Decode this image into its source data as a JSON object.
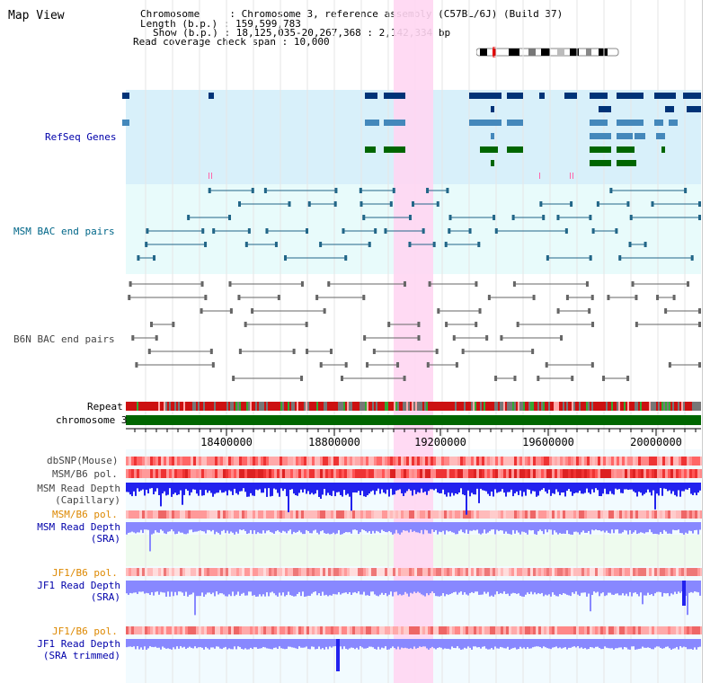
{
  "title": "Map View",
  "header": {
    "rows": [
      {
        "key": "Chromosome",
        "value": "Chromosome 3, reference assembly (C57BL/6J) (Build 37)"
      },
      {
        "key": "Length (b.p.)",
        "value": "159,599,783"
      },
      {
        "key": "Show (b.p.)",
        "value": "18,125,035-20,267,368 : 2,142,334 bp"
      },
      {
        "key": "Read coverage check span",
        "value": "10,000"
      }
    ]
  },
  "tracks": {
    "refseq": {
      "label": "RefSeq Genes",
      "color": "#0000aa"
    },
    "msm_bac": {
      "label": "MSM BAC end pairs",
      "color": "#006688"
    },
    "b6n_bac": {
      "label": "B6N BAC end pairs",
      "color": "#444444"
    },
    "repeat": {
      "label": "Repeat"
    },
    "chromosome": {
      "label": "chromosome 3"
    },
    "dbsnp": {
      "label": "dbSNP(Mouse)"
    },
    "msm_pol1": {
      "label": "MSM/B6 pol."
    },
    "msm_depth_cap": {
      "line1": "MSM Read Depth",
      "line2": "(Capillary)"
    },
    "msm_pol2": {
      "label": "MSM/B6 pol."
    },
    "msm_depth_sra": {
      "line1": "MSM Read Depth",
      "line2": "(SRA)"
    },
    "jf1_pol1": {
      "label": "JF1/B6 pol."
    },
    "jf1_depth_sra": {
      "line1": "JF1 Read Depth",
      "line2": "(SRA)"
    },
    "jf1_pol2": {
      "label": "JF1/B6 pol."
    },
    "jf1_depth_trim": {
      "line1": "JF1 Read Depth",
      "line2": "(SRA trimmed)"
    }
  },
  "axis": {
    "ticks": [
      "18400000",
      "18800000",
      "19200000",
      "19600000",
      "20000000"
    ]
  },
  "colors": {
    "highlight": "#ffd6f2",
    "refseq_bg": "#d8f0fa",
    "refseq_dark": "#003377",
    "refseq_mid": "#4488bb",
    "refseq_green": "#006600",
    "msm_bg": "#e8fbfb",
    "chrom_green": "#006600",
    "depth_blue": "#2222ee",
    "depth_light": "#8888ff"
  }
}
